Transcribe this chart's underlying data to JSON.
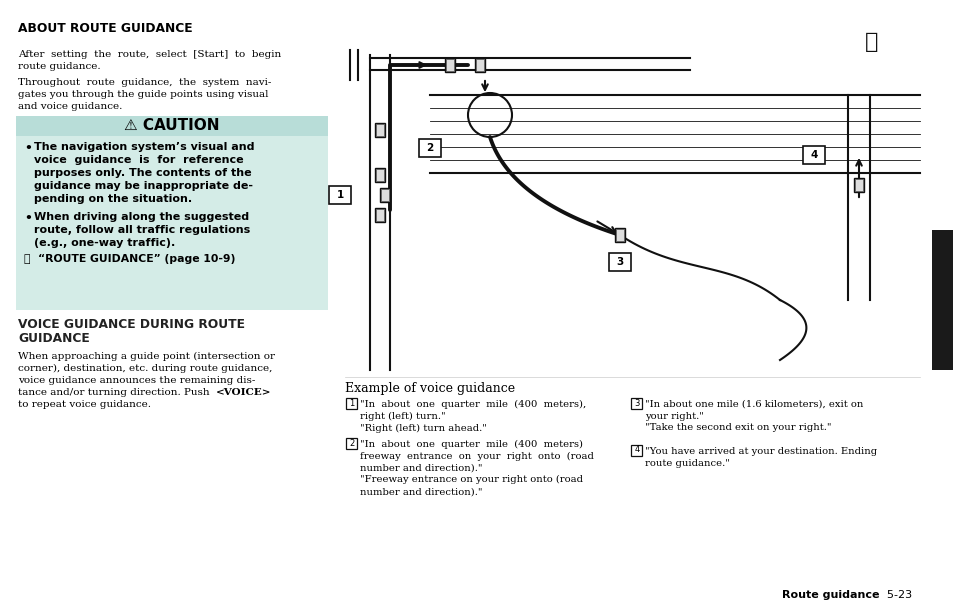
{
  "bg_color": "#ffffff",
  "caution_header_bg": "#b8ddd8",
  "caution_body_bg": "#d4ece7",
  "sidebar_color": "#1a1a1a",
  "title1": "ABOUT ROUTE GUIDANCE",
  "para1a": "After  setting  the  route,  select  [Start]  to  begin",
  "para1b": "route guidance.",
  "para2a": "Throughout  route  guidance,  the  system  navi-",
  "para2b": "gates you through the guide points using visual",
  "para2c": "and voice guidance.",
  "caution_title": " CAUTION",
  "caution_b1l1": "The navigation system’s visual and",
  "caution_b1l2": "voice  guidance  is  for  reference",
  "caution_b1l3": "purposes only. The contents of the",
  "caution_b1l4": "guidance may be inappropriate de-",
  "caution_b1l5": "pending on the situation.",
  "caution_b2l1": "When driving along the suggested",
  "caution_b2l2": "route, follow all traffic regulations",
  "caution_b2l3": "(e.g., one-way traffic).",
  "caution_ref": "“ROUTE GUIDANCE” (page 10-9)",
  "title2a": "VOICE GUIDANCE DURING ROUTE",
  "title2b": "GUIDANCE",
  "para3a": "When approaching a guide point (intersection or",
  "para3b": "corner), destination, etc. during route guidance,",
  "para3c": "voice guidance announces the remaining dis-",
  "para3d": "tance and/or turning direction. Push <VOICE>",
  "para3e": "to repeat voice guidance.",
  "example_title": "Example of voice guidance",
  "g1": "\"In  about  one  quarter  mile  (400  meters),\nright (left) turn.\"\n\"Right (left) turn ahead.\"",
  "g2": "\"In  about  one  quarter  mile  (400  meters)\nfreeway  entrance  on  your  right  onto  (road\nnumber and direction).\"\n\"Freeway entrance on your right onto (road\nnumber and direction).\"",
  "g3": "\"In about one mile (1.6 kilometers), exit on\nyour right.\"\n\"Take the second exit on your right.\"",
  "g4": "\"You have arrived at your destination. Ending\nroute guidance.\"",
  "footer_bold": "Route guidance",
  "footer_page": "  5-23"
}
